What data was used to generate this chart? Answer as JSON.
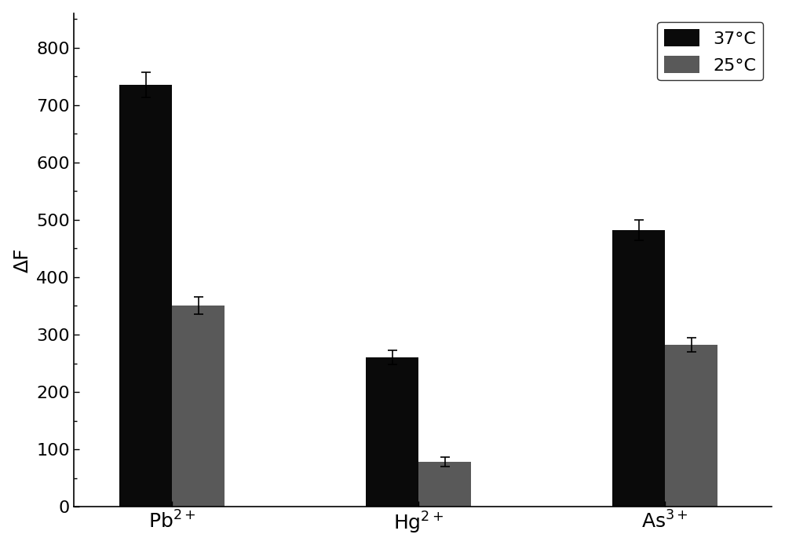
{
  "categories": [
    "Pb$^{2+}$",
    "Hg$^{2+}$",
    "As$^{3+}$"
  ],
  "values_37": [
    735,
    260,
    482
  ],
  "values_25": [
    350,
    78,
    282
  ],
  "errors_37": [
    22,
    12,
    18
  ],
  "errors_25": [
    15,
    8,
    12
  ],
  "color_37": "#0a0a0a",
  "color_25": "#595959",
  "ylabel": "ΔF",
  "ylim": [
    0,
    860
  ],
  "yticks": [
    0,
    100,
    200,
    300,
    400,
    500,
    600,
    700,
    800
  ],
  "legend_labels": [
    "37°C",
    "25°C"
  ],
  "bar_width": 0.32,
  "x_positions": [
    1.0,
    2.5,
    4.0
  ],
  "background_color": "#ffffff",
  "label_fontsize": 18,
  "tick_fontsize": 16,
  "legend_fontsize": 16
}
